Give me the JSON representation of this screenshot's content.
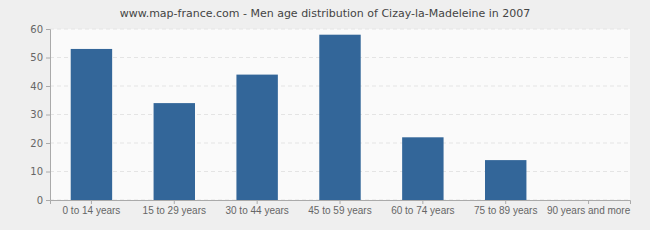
{
  "chart_data": {
    "type": "bar",
    "title": "www.map-france.com - Men age distribution of Cizay-la-Madeleine in 2007",
    "categories": [
      "0 to 14 years",
      "15 to 29 years",
      "30 to 44 years",
      "45 to 59 years",
      "60 to 74 years",
      "75 to 89 years",
      "90 years and more"
    ],
    "values": [
      53,
      34,
      44,
      58,
      22,
      14,
      0
    ],
    "color": "#336699",
    "ylim": [
      0,
      60
    ],
    "yticks": [
      0,
      10,
      20,
      30,
      40,
      50,
      60
    ],
    "grid": true
  }
}
